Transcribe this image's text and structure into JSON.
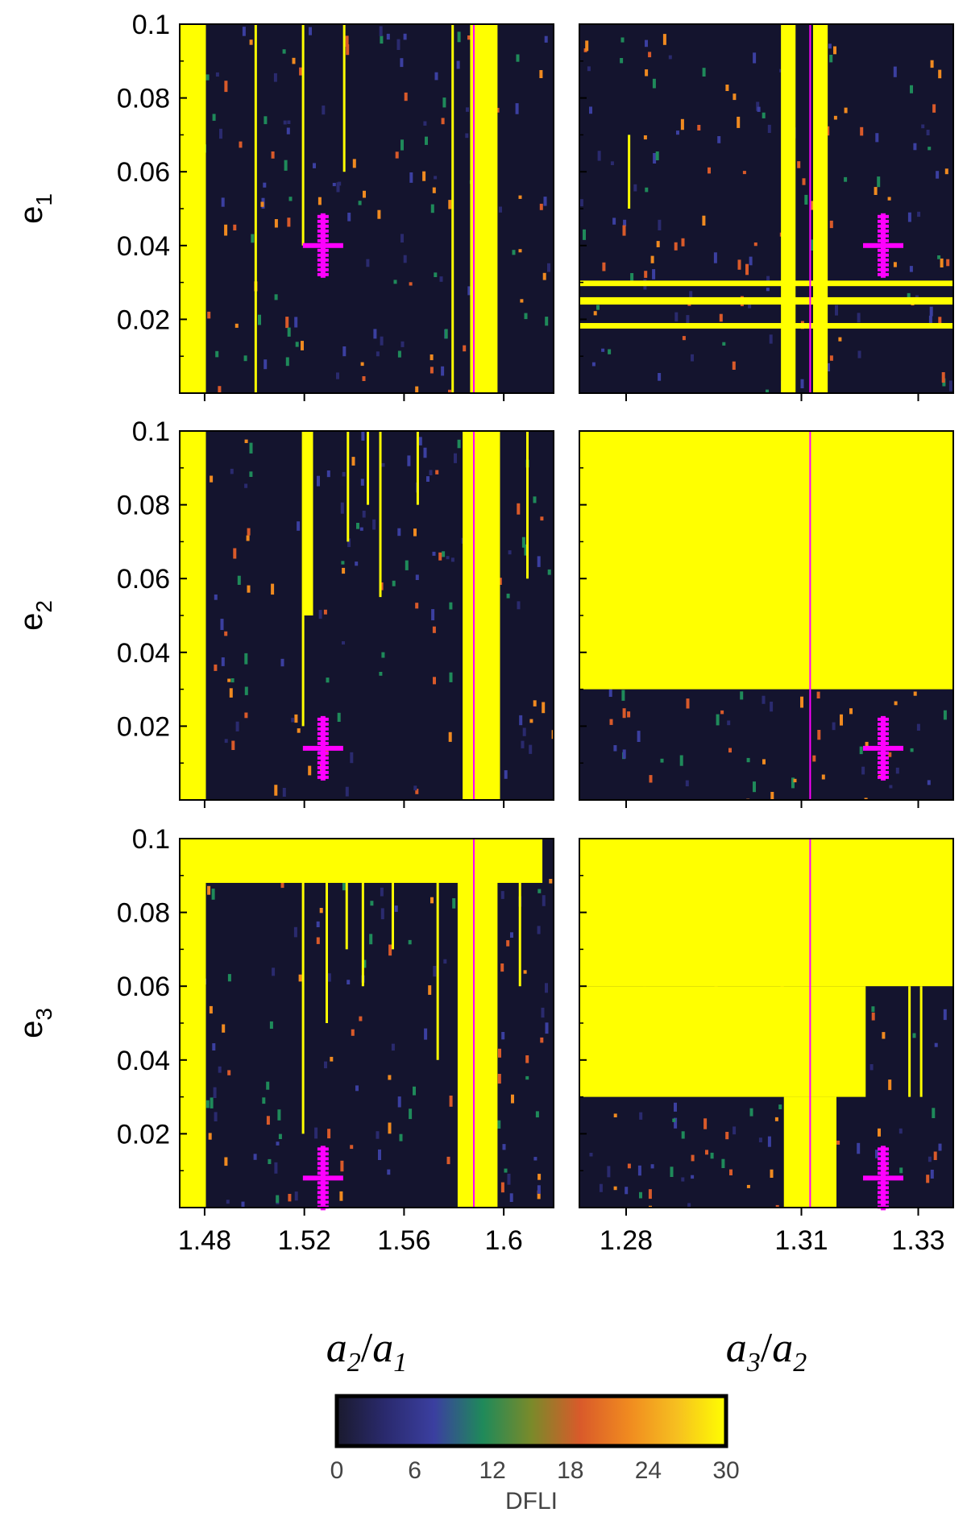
{
  "chart_data": {
    "type": "heatmap",
    "colorbar": {
      "title": "DFLI",
      "ticks": [
        0,
        6,
        12,
        18,
        24,
        30
      ],
      "range": [
        0,
        30
      ],
      "colors": [
        "#1a1a2e",
        "#2a2a6e",
        "#3b3fa0",
        "#1f8a5a",
        "#7a8a2a",
        "#d95a2a",
        "#f08a20",
        "#f6c020",
        "#ffff00"
      ]
    },
    "colors": {
      "chaotic": "#ffff00",
      "regular": "#14142e",
      "marker": "#ff00ff",
      "resonance_line": "#ff00ff"
    },
    "columns": [
      {
        "xlabel_base": "a",
        "xlabel_sub1": "2",
        "xlabel_sep": "/",
        "xlabel_sub2": "1",
        "xlim": [
          1.47,
          1.62
        ],
        "xticks": [
          "1.48",
          "1.52",
          "1.56",
          "1.6"
        ],
        "xtick_values": [
          1.48,
          1.52,
          1.56,
          1.6
        ],
        "resonance_line_x": 1.588
      },
      {
        "xlabel_base": "a",
        "xlabel_sub1": "3",
        "xlabel_sep": "/",
        "xlabel_sub2": "2",
        "xlim": [
          1.272,
          1.336
        ],
        "xticks": [
          "1.28",
          "1.31",
          "1.33"
        ],
        "xtick_values": [
          1.28,
          1.31,
          1.33
        ],
        "resonance_line_x": 1.3115
      }
    ],
    "rows": [
      {
        "ylabel_base": "e",
        "ylabel_sub": "1",
        "marker_e": 0.04,
        "marker_x": [
          1.5275,
          1.324
        ]
      },
      {
        "ylabel_base": "e",
        "ylabel_sub": "2",
        "marker_e": 0.014,
        "marker_x": [
          1.5275,
          1.324
        ]
      },
      {
        "ylabel_base": "e",
        "ylabel_sub": "3",
        "marker_e": 0.008,
        "marker_x": [
          1.5275,
          1.324
        ]
      }
    ],
    "ylim": [
      0.0,
      0.1
    ],
    "yticks": [
      "0.1",
      "0.08",
      "0.06",
      "0.04",
      "0.02"
    ],
    "ytick_values": [
      0.1,
      0.08,
      0.06,
      0.04,
      0.02
    ],
    "panels": [
      {
        "row": 0,
        "col": 0,
        "chaotic_bands": [
          [
            1.47,
            1.4805
          ],
          [
            1.5865,
            1.5975
          ]
        ],
        "chaotic_regions": [],
        "chaotic_lines": [
          [
            1.5195,
            0.04,
            0.1
          ],
          [
            1.5005,
            0.0,
            0.1
          ],
          [
            1.5795,
            0.0,
            0.1
          ],
          [
            1.536,
            0.06,
            0.1
          ]
        ]
      },
      {
        "row": 0,
        "col": 1,
        "chaotic_bands": [
          [
            1.3065,
            1.309
          ],
          [
            1.312,
            1.3145
          ]
        ],
        "chaotic_regions": [
          [
            1.272,
            1.336,
            0.0175,
            0.019
          ],
          [
            1.272,
            1.336,
            0.024,
            0.026
          ],
          [
            1.272,
            1.336,
            0.029,
            0.0305
          ]
        ],
        "chaotic_lines": [
          [
            1.2805,
            0.05,
            0.07
          ]
        ]
      },
      {
        "row": 1,
        "col": 0,
        "chaotic_bands": [
          [
            1.47,
            1.4805
          ],
          [
            1.5835,
            1.5985
          ]
        ],
        "chaotic_regions": [
          [
            1.5195,
            1.5235,
            0.05,
            0.1
          ]
        ],
        "chaotic_lines": [
          [
            1.5195,
            0.02,
            0.1
          ],
          [
            1.5375,
            0.07,
            0.1
          ],
          [
            1.5455,
            0.08,
            0.1
          ],
          [
            1.5505,
            0.055,
            0.1
          ],
          [
            1.5655,
            0.08,
            0.1
          ],
          [
            1.6095,
            0.06,
            0.1
          ]
        ]
      },
      {
        "row": 1,
        "col": 1,
        "chaotic_bands": [],
        "chaotic_regions": [
          [
            1.272,
            1.336,
            0.03,
            0.1
          ]
        ],
        "chaotic_lines": []
      },
      {
        "row": 2,
        "col": 0,
        "chaotic_bands": [
          [
            1.47,
            1.4805
          ],
          [
            1.5815,
            1.5975
          ]
        ],
        "chaotic_regions": [
          [
            1.47,
            1.6155,
            0.088,
            0.1
          ]
        ],
        "chaotic_lines": [
          [
            1.5195,
            0.02,
            0.1
          ],
          [
            1.529,
            0.05,
            0.1
          ],
          [
            1.537,
            0.07,
            0.1
          ],
          [
            1.5435,
            0.06,
            0.1
          ],
          [
            1.5555,
            0.07,
            0.1
          ],
          [
            1.5735,
            0.04,
            0.1
          ],
          [
            1.6065,
            0.06,
            0.1
          ]
        ]
      },
      {
        "row": 2,
        "col": 1,
        "chaotic_bands": [],
        "chaotic_regions": [
          [
            1.272,
            1.336,
            0.06,
            0.1
          ],
          [
            1.272,
            1.321,
            0.03,
            0.06
          ],
          [
            1.307,
            1.316,
            0.0,
            0.03
          ]
        ],
        "chaotic_lines": [
          [
            1.3285,
            0.03,
            0.06
          ],
          [
            1.3305,
            0.03,
            0.06
          ]
        ]
      }
    ]
  }
}
